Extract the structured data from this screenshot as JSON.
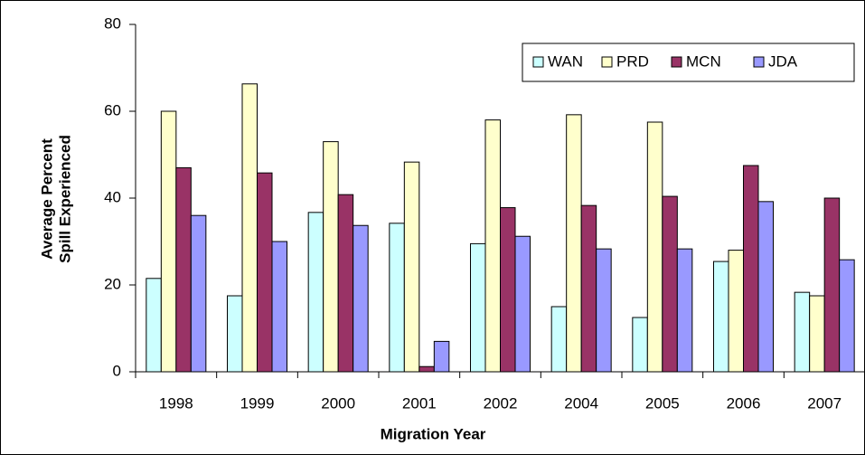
{
  "chart_data": {
    "type": "bar",
    "ylabel": [
      "Average Percent",
      "Spill Experienced"
    ],
    "xlabel": "Migration Year",
    "categories": [
      "1998",
      "1999",
      "2000",
      "2001",
      "2002",
      "2004",
      "2005",
      "2006",
      "2007"
    ],
    "series": [
      {
        "name": "WAN",
        "color": "#ccffff",
        "values": [
          21.5,
          17.5,
          36.7,
          34.2,
          29.5,
          15,
          12.5,
          25.4,
          18.3
        ]
      },
      {
        "name": "PRD",
        "color": "#ffffcc",
        "values": [
          60,
          66.3,
          53,
          48.3,
          58,
          59.2,
          57.5,
          28,
          17.5
        ]
      },
      {
        "name": "MCN",
        "color": "#993366",
        "values": [
          47,
          45.8,
          40.8,
          1.2,
          37.8,
          38.3,
          40.4,
          47.5,
          40
        ]
      },
      {
        "name": "JDA",
        "color": "#9999ff",
        "values": [
          36,
          30,
          33.7,
          7,
          31.2,
          28.3,
          28.3,
          39.2,
          25.8
        ]
      }
    ],
    "ylim": [
      0,
      80
    ],
    "yticks": [
      0,
      20,
      40,
      60,
      80
    ],
    "grid": false,
    "legend": "top-right"
  }
}
